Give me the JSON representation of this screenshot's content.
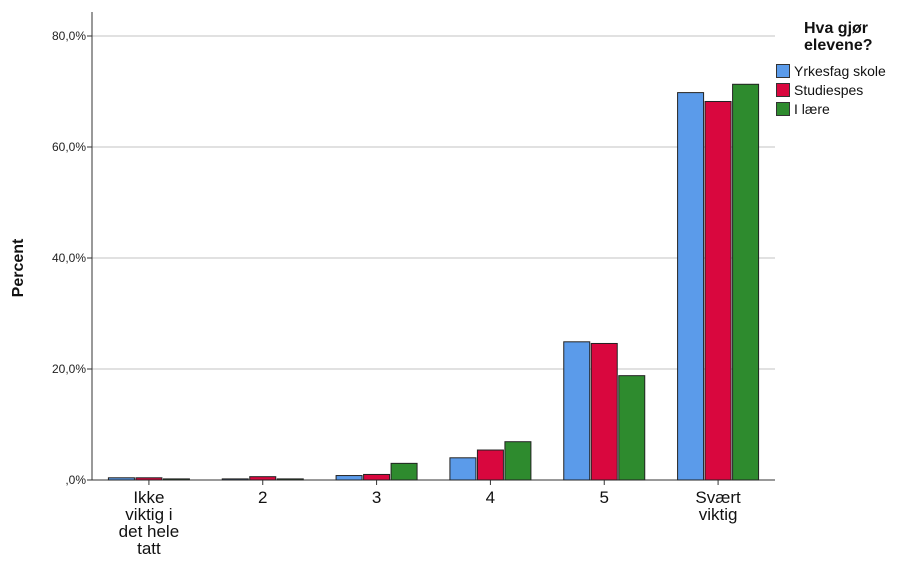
{
  "chart_data": {
    "type": "bar",
    "ylabel": "Percent",
    "xlabel": "",
    "ylim": [
      0,
      80
    ],
    "yticks": [
      {
        "value": 0,
        "label": ",0%"
      },
      {
        "value": 20,
        "label": "20,0%"
      },
      {
        "value": 40,
        "label": "40,0%"
      },
      {
        "value": 60,
        "label": "60,0%"
      },
      {
        "value": 80,
        "label": "80,0%"
      }
    ],
    "grid": true,
    "legend_position": "top-right",
    "legend_title": [
      "Hva gjør",
      "elevene?"
    ],
    "categories": [
      [
        "Ikke",
        "viktig i",
        "det hele",
        "tatt"
      ],
      [
        "2"
      ],
      [
        "3"
      ],
      [
        "4"
      ],
      [
        "5"
      ],
      [
        "Svært",
        "viktig"
      ]
    ],
    "series": [
      {
        "name": "Yrkesfag skole",
        "color": "#5b9bea",
        "values": [
          0.4,
          0.2,
          0.8,
          4.0,
          24.9,
          69.8
        ]
      },
      {
        "name": "Studiespes",
        "color": "#d9073e",
        "values": [
          0.4,
          0.6,
          1.0,
          5.4,
          24.6,
          68.2
        ]
      },
      {
        "name": "I lære",
        "color": "#2e8b2e",
        "values": [
          0.2,
          0.2,
          3.0,
          6.9,
          18.8,
          71.3
        ]
      }
    ]
  }
}
